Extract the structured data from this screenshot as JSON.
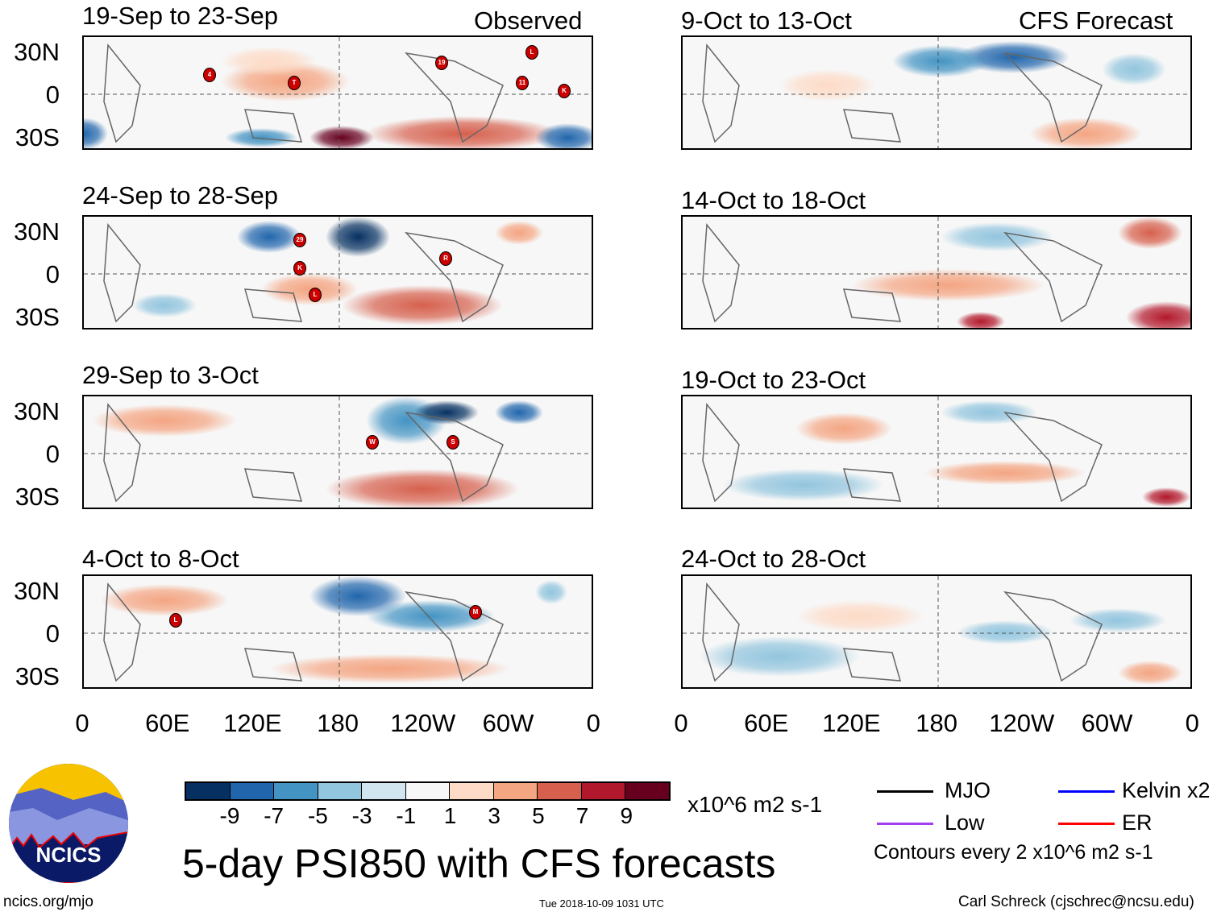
{
  "headers": {
    "observed": "Observed",
    "forecast": "CFS Forecast"
  },
  "panels": [
    {
      "title": "19-Sep to 23-Sep",
      "group": "observed",
      "storms": [
        "4",
        "T",
        "19",
        "L",
        "11",
        "K"
      ]
    },
    {
      "title": "24-Sep to 28-Sep",
      "group": "observed",
      "storms": [
        "29",
        "K",
        "L",
        "R"
      ]
    },
    {
      "title": "29-Sep to 3-Oct",
      "group": "observed",
      "storms": [
        "W",
        "S"
      ]
    },
    {
      "title": "4-Oct to 8-Oct",
      "group": "observed",
      "storms": [
        "L",
        "M"
      ]
    },
    {
      "title": "9-Oct to 13-Oct",
      "group": "forecast",
      "storms": []
    },
    {
      "title": "14-Oct to 18-Oct",
      "group": "forecast",
      "storms": []
    },
    {
      "title": "19-Oct to 23-Oct",
      "group": "forecast",
      "storms": []
    },
    {
      "title": "24-Oct to 28-Oct",
      "group": "forecast",
      "storms": []
    }
  ],
  "y_ticks": [
    "30N",
    "0",
    "30S"
  ],
  "x_ticks": [
    "0",
    "60E",
    "120E",
    "180",
    "120W",
    "60W",
    "0"
  ],
  "colorbar": {
    "colors": [
      "#053061",
      "#2166ac",
      "#4393c3",
      "#92c5de",
      "#d1e5f0",
      "#f7f7f7",
      "#fddbc7",
      "#f4a582",
      "#d6604d",
      "#b2182b",
      "#67001f"
    ],
    "labels": [
      "-9",
      "-7",
      "-5",
      "-3",
      "-1",
      "1",
      "3",
      "5",
      "7",
      "9"
    ],
    "units": "x10^6 m2 s-1"
  },
  "legend": {
    "items": [
      {
        "label": "MJO",
        "color": "#000000"
      },
      {
        "label": "Kelvin x2",
        "color": "#0000ff"
      },
      {
        "label": "Low",
        "color": "#a040f0"
      },
      {
        "label": "ER",
        "color": "#ff0000"
      }
    ],
    "contours": "Contours every 2 x10^6 m2 s-1"
  },
  "logo": {
    "text": "NCICS"
  },
  "title": "5-day PSI850 with CFS forecasts",
  "footer": {
    "url": "ncics.org/mjo",
    "timestamp": "Tue 2018-10-09 1031 UTC",
    "author": "Carl Schreck (cjschrec@ncsu.edu)"
  }
}
